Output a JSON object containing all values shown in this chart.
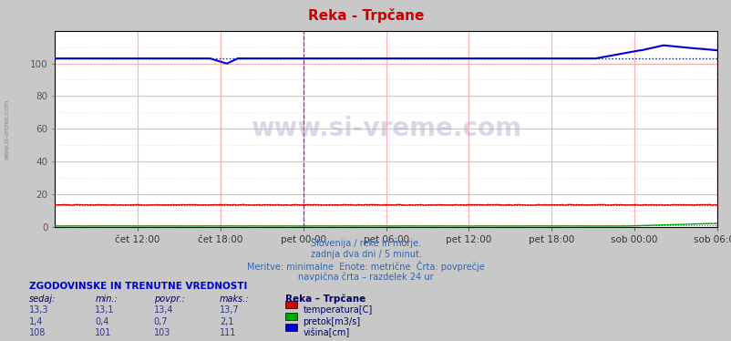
{
  "title": "Reka - Trpčane",
  "title_color": "#cc0000",
  "fig_bg_color": "#c8c8c8",
  "plot_bg_color": "#ffffff",
  "grid_h_color": "#ffb0b0",
  "grid_v_color": "#ffb0b0",
  "grid_minor_color": "#ffe0e0",
  "xlabel_ticks": [
    "čet 12:00",
    "čet 18:00",
    "pet 00:00",
    "pet 06:00",
    "pet 12:00",
    "pet 18:00",
    "sob 00:00",
    "sob 06:00"
  ],
  "n_points": 577,
  "ymin": 0,
  "ymax": 120,
  "yticks": [
    0,
    20,
    40,
    60,
    80,
    100
  ],
  "temp_avg": 13.4,
  "pretok_avg": 0.7,
  "visina_avg": 103,
  "temp_color": "#dd0000",
  "pretok_color": "#00aa00",
  "visina_color": "#0000cc",
  "avg_line_color": "#000080",
  "vline_color": "#cc00cc",
  "border_color": "#000000",
  "watermark": "www.si-vreme.com",
  "watermark_color": "#aaaacc",
  "left_text": "www.si-vreme.com",
  "subtitle_lines": [
    "Slovenija / reke in morje.",
    "zadnja dva dni / 5 minut.",
    "Meritve: minimalne  Enote: metrične  Črta: povprečje",
    "navpična črta – razdelek 24 ur"
  ],
  "table_header": "ZGODOVINSKE IN TRENUTNE VREDNOSTI",
  "col_headers": [
    "sedaj:",
    "min.:",
    "povpr.:",
    "maks.:"
  ],
  "station_header": "Reka – Trpčane",
  "row1_vals": [
    "13,3",
    "13,1",
    "13,4",
    "13,7"
  ],
  "row2_vals": [
    "1,4",
    "0,4",
    "0,7",
    "2,1"
  ],
  "row3_vals": [
    "108",
    "101",
    "103",
    "111"
  ],
  "row_labels": [
    "temperatura[C]",
    "pretok[m3/s]",
    "višina[cm]"
  ],
  "row_colors": [
    "#dd0000",
    "#00aa00",
    "#0000cc"
  ],
  "text_color": "#333399",
  "header_color": "#0000cc",
  "label_color": "#000066"
}
